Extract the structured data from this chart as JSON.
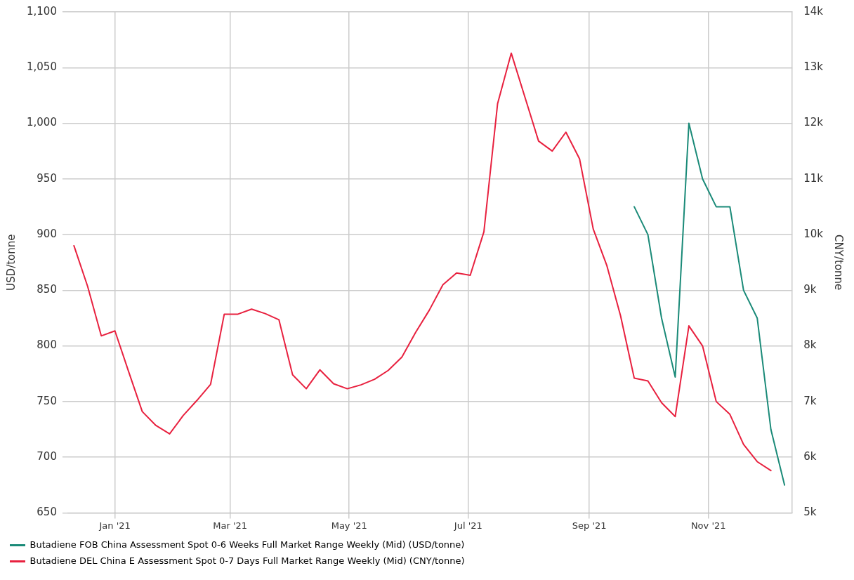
{
  "chart_data": {
    "type": "line",
    "ylabel": "USD/tonne",
    "y2label": "CNY/tonne",
    "xlim": [
      "2020-12-08",
      "2021-12-14"
    ],
    "xticks": [
      {
        "value": "2021-01-01",
        "label": "Jan '21"
      },
      {
        "value": "2021-03-01",
        "label": "Mar '21"
      },
      {
        "value": "2021-05-01",
        "label": "May '21"
      },
      {
        "value": "2021-07-01",
        "label": "Jul '21"
      },
      {
        "value": "2021-09-01",
        "label": "Sep '21"
      },
      {
        "value": "2021-11-01",
        "label": "Nov '21"
      }
    ],
    "ylim": [
      650,
      1100
    ],
    "yticks": [
      650,
      700,
      750,
      800,
      850,
      900,
      950,
      {
        "value": 1000,
        "label": "1,000"
      },
      {
        "value": 1050,
        "label": "1,050"
      },
      {
        "value": 1100,
        "label": "1,100"
      }
    ],
    "y2lim": [
      5000,
      14000
    ],
    "y2ticks": [
      {
        "value": 5000,
        "label": "5k"
      },
      {
        "value": 6000,
        "label": "6k"
      },
      {
        "value": 7000,
        "label": "7k"
      },
      {
        "value": 8000,
        "label": "8k"
      },
      {
        "value": 9000,
        "label": "9k"
      },
      {
        "value": 10000,
        "label": "10k"
      },
      {
        "value": 11000,
        "label": "11k"
      },
      {
        "value": 12000,
        "label": "12k"
      },
      {
        "value": 13000,
        "label": "13k"
      },
      {
        "value": 14000,
        "label": "14k"
      }
    ],
    "grid": true,
    "legend": "bottom",
    "marker": "none",
    "line_style": "solid",
    "series": [
      {
        "name": "Butadiene FOB China Assessment Spot 0-6 Weeks Full Market Range Weekly (Mid) (USD/tonne)",
        "color": "#1a8a78",
        "axis": "y",
        "x": [
          "2021-09-24",
          "2021-10-01",
          "2021-10-08",
          "2021-10-15",
          "2021-10-22",
          "2021-10-29",
          "2021-11-05",
          "2021-11-12",
          "2021-11-19",
          "2021-11-26",
          "2021-12-03",
          "2021-12-10"
        ],
        "values": [
          925,
          900,
          825,
          772,
          1000,
          950,
          925,
          925,
          850,
          825,
          725,
          675
        ]
      },
      {
        "name": "Butadiene DEL China E Assessment Spot 0-7 Days Full Market Range Weekly (Mid) (CNY/tonne)",
        "color": "#e8213f",
        "axis": "y2",
        "x": [
          "2020-12-11",
          "2020-12-18",
          "2020-12-25",
          "2021-01-01",
          "2021-01-08",
          "2021-01-15",
          "2021-01-22",
          "2021-01-29",
          "2021-02-05",
          "2021-02-12",
          "2021-02-19",
          "2021-02-26",
          "2021-03-05",
          "2021-03-12",
          "2021-03-19",
          "2021-03-26",
          "2021-04-02",
          "2021-04-09",
          "2021-04-16",
          "2021-04-23",
          "2021-04-30",
          "2021-05-07",
          "2021-05-14",
          "2021-05-21",
          "2021-05-28",
          "2021-06-04",
          "2021-06-11",
          "2021-06-18",
          "2021-06-25",
          "2021-07-02",
          "2021-07-09",
          "2021-07-16",
          "2021-07-23",
          "2021-07-30",
          "2021-08-06",
          "2021-08-13",
          "2021-08-20",
          "2021-08-27",
          "2021-09-03",
          "2021-09-10",
          "2021-09-17",
          "2021-09-24",
          "2021-10-01",
          "2021-10-08",
          "2021-10-15",
          "2021-10-22",
          "2021-10-29",
          "2021-11-05",
          "2021-11-12",
          "2021-11-19",
          "2021-11-26",
          "2021-12-03"
        ],
        "values": [
          9800,
          9070,
          8180,
          8270,
          7540,
          6820,
          6570,
          6420,
          6750,
          7020,
          7310,
          8570,
          8570,
          8660,
          8580,
          8470,
          7480,
          7230,
          7570,
          7320,
          7230,
          7300,
          7400,
          7560,
          7800,
          8240,
          8640,
          9100,
          9310,
          9270,
          10050,
          12350,
          13260,
          12470,
          11680,
          11500,
          11840,
          11360,
          10100,
          9440,
          8540,
          7420,
          7370,
          6980,
          6730,
          8360,
          8000,
          7000,
          6770,
          6230,
          5920,
          5760
        ]
      }
    ]
  }
}
